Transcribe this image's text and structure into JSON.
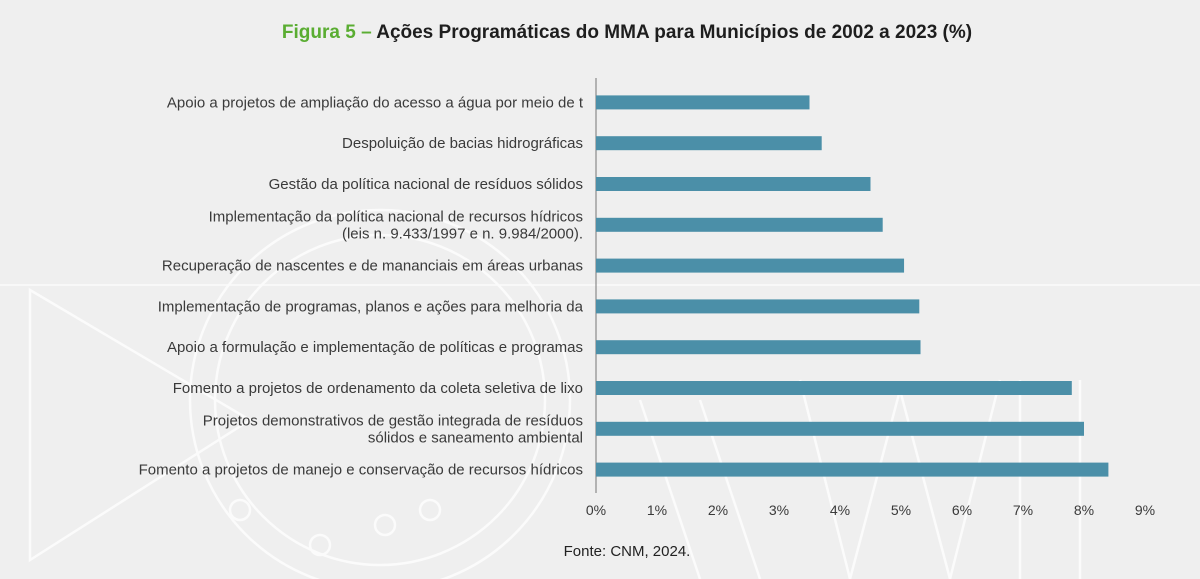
{
  "figure": {
    "label": "Figura 5 –",
    "title": "Ações Programáticas do MMA para Municípios de 2002 a 2023 (%)"
  },
  "source": "Fonte: CNM, 2024.",
  "colors": {
    "bar": "#4b8fa8",
    "figure_label": "#5aad32",
    "text": "#3a3a3a",
    "axis": "#8a8a8a",
    "background": "#efefef"
  },
  "chart_data": {
    "type": "bar",
    "orientation": "horizontal",
    "title": "Ações Programáticas do MMA para Municípios de 2002 a 2023 (%)",
    "categories": [
      [
        "Apoio a projetos de ampliação do acesso a água por meio de t"
      ],
      [
        "Despoluição de bacias hidrográficas"
      ],
      [
        "Gestão da política nacional de resíduos sólidos"
      ],
      [
        "Implementação da política nacional de recursos hídricos",
        "(leis n. 9.433/1997 e n. 9.984/2000)."
      ],
      [
        "Recuperação de nascentes e de mananciais em áreas urbanas"
      ],
      [
        "Implementação de programas, planos e ações para melhoria da"
      ],
      [
        "Apoio a formulação e implementação de políticas e programas"
      ],
      [
        "Fomento a projetos de ordenamento da coleta seletiva de lixo"
      ],
      [
        "Projetos demonstrativos de gestão integrada de resíduos",
        "sólidos e saneamento ambiental"
      ],
      [
        "Fomento a projetos de manejo e conservação de recursos hídricos"
      ]
    ],
    "values": [
      3.5,
      3.7,
      4.5,
      4.7,
      5.05,
      5.3,
      5.32,
      7.8,
      8.0,
      8.4
    ],
    "unit": "%",
    "xlim": [
      0,
      9
    ],
    "x_ticks": [
      "0%",
      "1%",
      "2%",
      "3%",
      "4%",
      "5%",
      "6%",
      "7%",
      "8%",
      "9%"
    ],
    "grid": false,
    "legend": "none"
  }
}
